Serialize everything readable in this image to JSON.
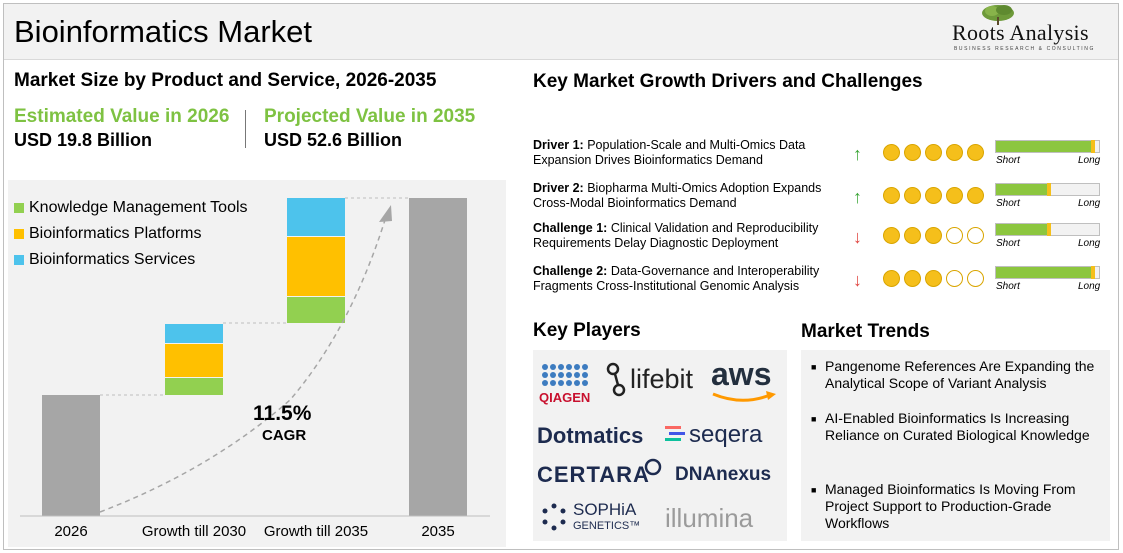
{
  "header": {
    "title": "Bioinformatics Market",
    "logo_name": "Roots Analysis",
    "logo_tagline": "BUSINESS RESEARCH & CONSULTING"
  },
  "market_size": {
    "heading": "Market Size by Product and Service, 2026-2035",
    "estimated_label": "Estimated Value in 2026",
    "estimated_value": "USD 19.8 Billion",
    "projected_label": "Projected Value in 2035",
    "projected_value": "USD 52.6 Billion"
  },
  "chart_data": {
    "type": "bar",
    "categories": [
      "2026",
      "Growth till 2030",
      "Growth till 2035",
      "2035"
    ],
    "series": [
      {
        "name": "Knowledge Management Tools",
        "color": "#92d050"
      },
      {
        "name": "Bioinformatics Platforms",
        "color": "#ffc000"
      },
      {
        "name": "Bioinformatics Services",
        "color": "#4dc3ec"
      }
    ],
    "cagr_value": "11.5%",
    "cagr_label": "CAGR"
  },
  "drivers_heading": "Key Market Growth Drivers and Challenges",
  "drivers": [
    {
      "tag": "Driver 1:",
      "text": "Population-Scale and Multi-Omics Data Expansion Drives Bioinformatics Demand",
      "direction": "up",
      "arrow": "↑",
      "rating": 5,
      "impact": 0.95,
      "short": "Short",
      "long": "Long"
    },
    {
      "tag": "Driver 2:",
      "text": "Biopharma Multi-Omics Adoption Expands Cross-Modal Bioinformatics Demand",
      "direction": "up",
      "arrow": "↑",
      "rating": 5,
      "impact": 0.52,
      "short": "Short",
      "long": "Long"
    },
    {
      "tag": "Challenge 1:",
      "text": "Clinical Validation and Reproducibility Requirements Delay Diagnostic Deployment",
      "direction": "down",
      "arrow": "↓",
      "rating": 3,
      "impact": 0.52,
      "short": "Short",
      "long": "Long"
    },
    {
      "tag": "Challenge 2:",
      "text": "Data-Governance and Interoperability Fragments Cross-Institutional Genomic Analysis",
      "direction": "down",
      "arrow": "↓",
      "rating": 3,
      "impact": 0.95,
      "short": "Short",
      "long": "Long"
    }
  ],
  "colors": {
    "accent_green": "#7ec242",
    "up_arrow": "#3aa535",
    "down_arrow": "#e0453f",
    "dot_fill": "#f5bf1b"
  },
  "players": {
    "heading": "Key Players",
    "items": [
      {
        "name": "QIAGEN",
        "color": "#1a4f8b"
      },
      {
        "name": "lifebit",
        "color": "#222222"
      },
      {
        "name": "aws",
        "color": "#232f3e"
      },
      {
        "name": "Dotmatics",
        "color": "#1d2b4f"
      },
      {
        "name": "seqera",
        "color": "#1d2b4f"
      },
      {
        "name": "CERTARA",
        "color": "#1d2b4f"
      },
      {
        "name": "DNAnexus",
        "color": "#1d2b4f"
      },
      {
        "name": "SOPHiA",
        "color": "#1d2b4f"
      },
      {
        "name": "GENETICS™",
        "color": "#1d2b4f"
      },
      {
        "name": "illumina",
        "color": "#9b9b9b"
      }
    ]
  },
  "trends": {
    "heading": "Market Trends",
    "items": [
      "Pangenome References Are Expanding the Analytical Scope of Variant Analysis",
      "AI-Enabled Bioinformatics Is Increasing Reliance on Curated Biological Knowledge",
      "Managed Bioinformatics Is Moving From Project Support to Production-Grade Workflows"
    ]
  }
}
